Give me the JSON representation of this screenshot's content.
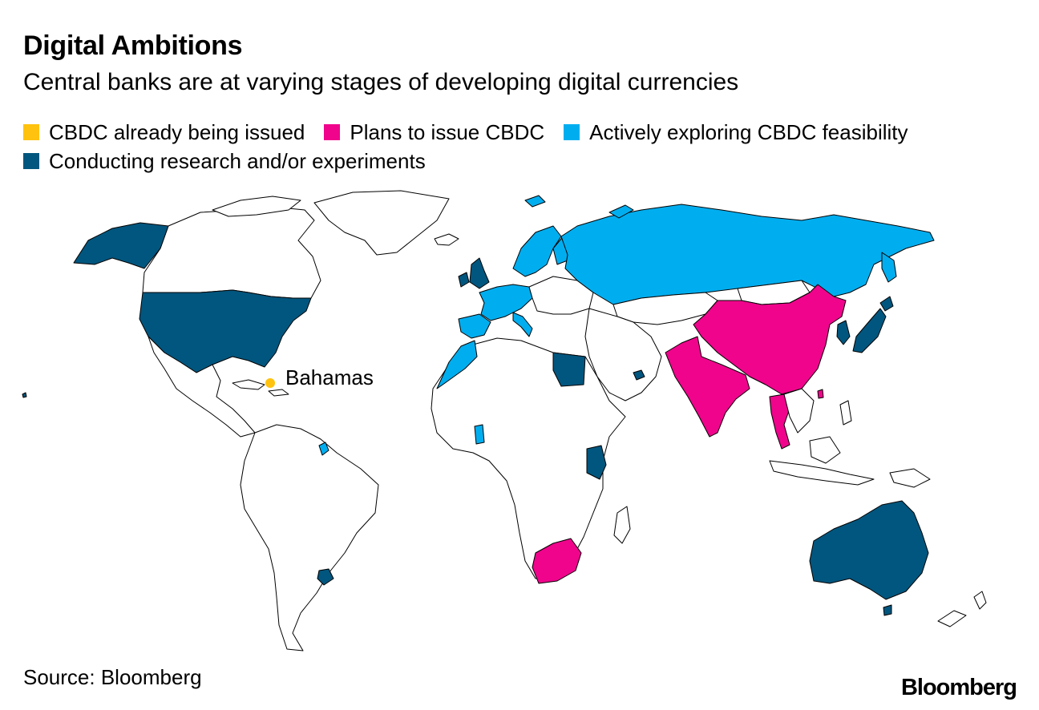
{
  "header": {
    "title": "Digital Ambitions",
    "subtitle": "Central banks are at varying stages of developing digital currencies"
  },
  "legend": [
    {
      "label": "CBDC already being issued",
      "color": "#FFC20E"
    },
    {
      "label": "Plans to issue CBDC",
      "color": "#F0048C"
    },
    {
      "label": "Actively exploring CBDC feasibility",
      "color": "#00AEEF"
    },
    {
      "label": "Conducting research and/or experiments",
      "color": "#00567E"
    }
  ],
  "map": {
    "callout_label": "Bahamas",
    "land_color": "#FFFFFF",
    "border_color": "#000000"
  },
  "footer": {
    "source": "Source: Bloomberg",
    "brand": "Bloomberg"
  }
}
